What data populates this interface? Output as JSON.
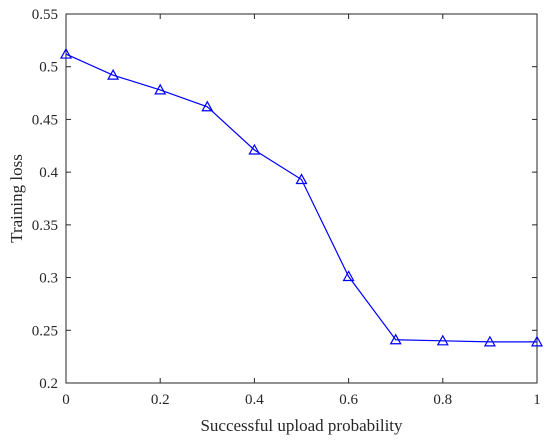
{
  "chart_data": {
    "type": "line",
    "title": "",
    "xlabel": "Successful upload probability",
    "ylabel": "Training loss",
    "xlim": [
      0,
      1
    ],
    "ylim": [
      0.2,
      0.55
    ],
    "x_ticks": [
      0,
      0.2,
      0.4,
      0.6,
      0.8,
      1
    ],
    "x_tick_labels": [
      "0",
      "0.2",
      "0.4",
      "0.6",
      "0.8",
      "1"
    ],
    "y_ticks": [
      0.2,
      0.25,
      0.3,
      0.35,
      0.4,
      0.45,
      0.5,
      0.55
    ],
    "y_tick_labels": [
      "0.2",
      "0.25",
      "0.3",
      "0.35",
      "0.4",
      "0.45",
      "0.5",
      "0.55"
    ],
    "grid": false,
    "legend": "none",
    "series": [
      {
        "color": "#0000ff",
        "marker": "triangle",
        "x": [
          0,
          0.1,
          0.2,
          0.3,
          0.4,
          0.5,
          0.6,
          0.7,
          0.8,
          0.9,
          1.0
        ],
        "y": [
          0.512,
          0.492,
          0.478,
          0.462,
          0.421,
          0.393,
          0.301,
          0.241,
          0.24,
          0.239,
          0.239
        ]
      }
    ]
  }
}
